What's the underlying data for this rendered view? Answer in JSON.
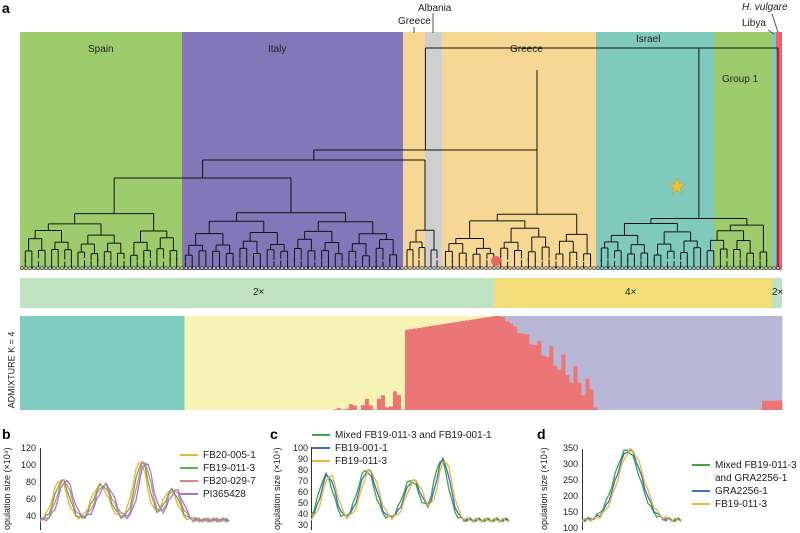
{
  "panels": {
    "a": "a",
    "b": "b",
    "c": "c",
    "d": "d"
  },
  "regions_top": {
    "spain": "Spain",
    "italy": "Italy",
    "greece_left": "Greece",
    "albania": "Albania",
    "greece_main": "Greece",
    "israel": "Israel",
    "group1": "Group 1",
    "h_vulgare": "H. vulgare",
    "libya": "Libya"
  },
  "ploidy": {
    "left": "2×",
    "middle": "4×",
    "right": "2×"
  },
  "admixture_label": "ADMIXTURE K = 4",
  "colors": {
    "spain": "#9ccc6c",
    "italy": "#8277b8",
    "greece": "#f6d894",
    "albania": "#cfcfcf",
    "israel": "#7fcabd",
    "group1": "#9ccc6c",
    "h_vulgare": "#e8636b",
    "ploidy_2x": "#bfe3c0",
    "ploidy_4x": "#f3de7a",
    "adm_teal": "#7ecdc0",
    "adm_yellow": "#f7f3b4",
    "adm_red": "#ec7575",
    "adm_lavender": "#b9b7d7"
  },
  "panel_b": {
    "ylabel": "opulation size (×10⁴)",
    "yticks": [
      "120",
      "100",
      "80",
      "60",
      "40"
    ],
    "legend": [
      {
        "label": "FB20-005-1",
        "color": "#e2b63a"
      },
      {
        "label": "FB19-011-3",
        "color": "#63b24d"
      },
      {
        "label": "FB20-029-7",
        "color": "#e07f8a"
      },
      {
        "label": "PI365428",
        "color": "#9a7fd0"
      }
    ]
  },
  "panel_c": {
    "ylabel": "opulation size (×10⁴)",
    "yticks": [
      "100",
      "90",
      "80",
      "70",
      "60",
      "50",
      "40",
      "30"
    ],
    "legend": [
      {
        "label": "Mixed FB19-011-3 and FB19-001-1",
        "color": "#3aa844"
      },
      {
        "label": "FB19-001-1",
        "color": "#3d6fc2"
      },
      {
        "label": "FB19-011-3",
        "color": "#efb43c"
      }
    ]
  },
  "panel_d": {
    "ylabel": "opulation size (×10⁴)",
    "yticks": [
      "350",
      "300",
      "250",
      "200",
      "150",
      "100"
    ],
    "legend": [
      {
        "label": "Mixed FB19-011-3",
        "color": "#3aa844"
      },
      {
        "label": "and GRA2256-1",
        "color": ""
      },
      {
        "label": "GRA2256-1",
        "color": "#3d6fc2"
      },
      {
        "label": "FB19-011-3",
        "color": "#efb43c"
      }
    ]
  }
}
